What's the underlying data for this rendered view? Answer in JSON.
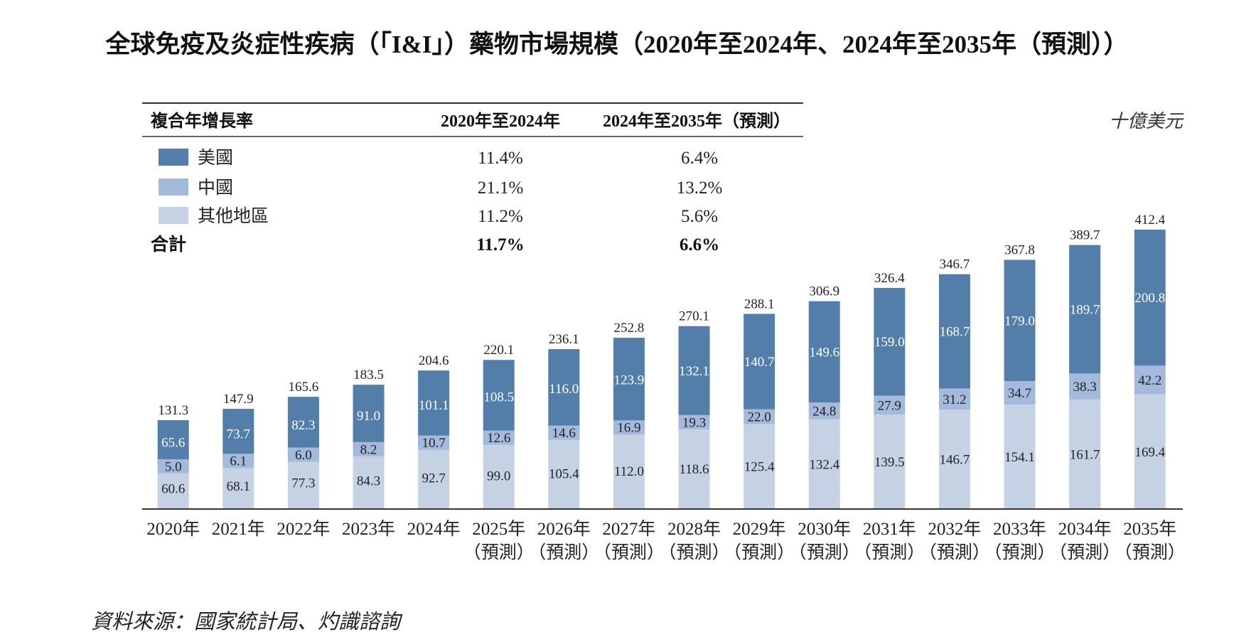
{
  "source": "資料來源：國家統計局、灼識諮詢",
  "cagr_table": {
    "header": {
      "label": "複合年增長率",
      "period1": "2020年至2024年",
      "period2": "2024年至2035年（預測）"
    },
    "rows": [
      {
        "values": [
          "11.4%",
          "6.4%"
        ]
      },
      {
        "values": [
          "21.1%",
          "13.2%"
        ]
      },
      {
        "values": [
          "11.2%",
          "5.6%"
        ]
      }
    ],
    "total": {
      "label": "合計",
      "values": [
        "11.7%",
        "6.6%"
      ]
    }
  },
  "chart_data": {
    "type": "bar",
    "stacked": true,
    "title": "全球免疫及炎症性疾病（「I&I」）藥物市場規模（2020年至2024年、2024年至2035年（預測））",
    "unit": "十億美元",
    "categories": [
      [
        "2020年"
      ],
      [
        "2021年"
      ],
      [
        "2022年"
      ],
      [
        "2023年"
      ],
      [
        "2024年"
      ],
      [
        "2025年",
        "（預測）"
      ],
      [
        "2026年",
        "（預測）"
      ],
      [
        "2027年",
        "（預測）"
      ],
      [
        "2028年",
        "（預測）"
      ],
      [
        "2029年",
        "（預測）"
      ],
      [
        "2030年",
        "（預測）"
      ],
      [
        "2031年",
        "（預測）"
      ],
      [
        "2032年",
        "（預測）"
      ],
      [
        "2033年",
        "（預測）"
      ],
      [
        "2034年",
        "（預測）"
      ],
      [
        "2035年",
        "（預測）"
      ]
    ],
    "series": [
      {
        "name": "美國",
        "color": "#547eaa",
        "values": [
          65.6,
          73.7,
          82.3,
          91.0,
          101.1,
          108.5,
          116.0,
          123.9,
          132.1,
          140.7,
          149.6,
          159.0,
          168.7,
          179.0,
          189.7,
          200.8
        ]
      },
      {
        "name": "中國",
        "color": "#a4badc",
        "values": [
          5.0,
          6.1,
          6.0,
          8.2,
          10.7,
          12.6,
          14.6,
          16.9,
          19.3,
          22.0,
          24.8,
          27.9,
          31.2,
          34.7,
          38.3,
          42.2
        ]
      },
      {
        "name": "其他地區",
        "color": "#c5d2e3",
        "values": [
          60.6,
          68.1,
          77.3,
          84.3,
          92.7,
          99.0,
          105.4,
          112.0,
          118.6,
          125.4,
          132.4,
          139.5,
          146.7,
          154.1,
          161.7,
          169.4
        ]
      }
    ],
    "totals": [
      131.3,
      147.9,
      165.6,
      183.5,
      204.6,
      220.1,
      236.1,
      252.8,
      270.1,
      288.1,
      306.9,
      326.4,
      346.7,
      367.8,
      389.7,
      412.4
    ]
  }
}
